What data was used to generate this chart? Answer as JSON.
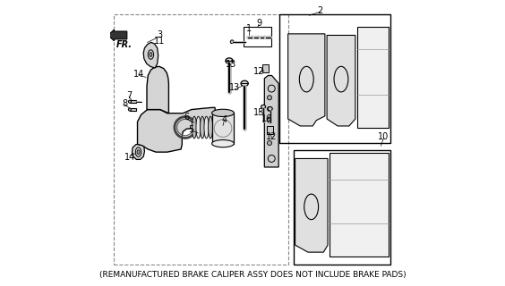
{
  "title": "(REMANUFACTURED BRAKE CALIPER ASSY DOES NOT INCLUDE BRAKE PADS)",
  "bg_color": "#ffffff",
  "line_color": "#000000",
  "title_fontsize": 6.5
}
